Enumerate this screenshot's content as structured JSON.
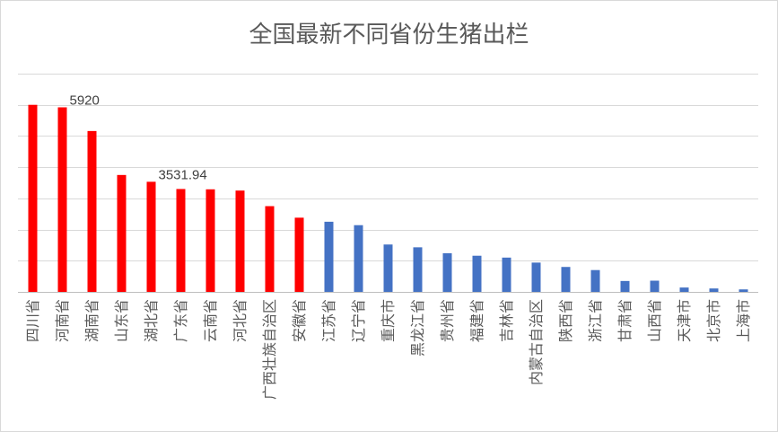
{
  "chart_data": {
    "type": "bar",
    "title": "全国最新不同省份生猪出栏",
    "xlabel": "",
    "ylabel": "",
    "ylim": [
      0,
      7000
    ],
    "grid": true,
    "categories": [
      "四川省",
      "河南省",
      "湖南省",
      "山东省",
      "湖北省",
      "广东省",
      "云南省",
      "河北省",
      "广西壮族自治区",
      "安徽省",
      "江苏省",
      "辽宁省",
      "重庆市",
      "黑龙江省",
      "贵州省",
      "福建省",
      "吉林省",
      "内蒙古自治区",
      "陕西省",
      "浙江省",
      "甘肃省",
      "山西省",
      "天津市",
      "北京市",
      "上海市"
    ],
    "values": [
      6000,
      5920,
      5160,
      3750,
      3531.94,
      3300,
      3290,
      3250,
      2750,
      2380,
      2250,
      2140,
      1520,
      1430,
      1240,
      1160,
      1100,
      940,
      800,
      700,
      350,
      360,
      140,
      110,
      80
    ],
    "colors": [
      "#ff0000",
      "#ff0000",
      "#ff0000",
      "#ff0000",
      "#ff0000",
      "#ff0000",
      "#ff0000",
      "#ff0000",
      "#ff0000",
      "#ff0000",
      "#4472c4",
      "#4472c4",
      "#4472c4",
      "#4472c4",
      "#4472c4",
      "#4472c4",
      "#4472c4",
      "#4472c4",
      "#4472c4",
      "#4472c4",
      "#4472c4",
      "#4472c4",
      "#4472c4",
      "#4472c4",
      "#4472c4"
    ],
    "data_labels": [
      {
        "index": 1,
        "text": "5920"
      },
      {
        "index": 4,
        "text": "3531.94"
      }
    ]
  }
}
